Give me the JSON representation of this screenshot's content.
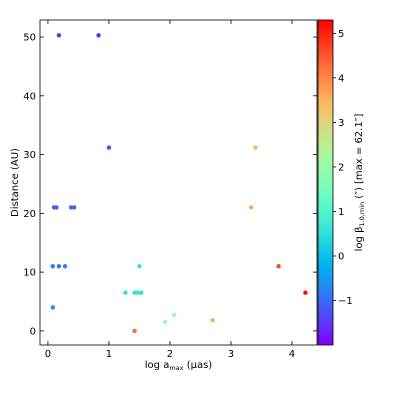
{
  "chart_data": {
    "type": "scatter",
    "x_label": {
      "main": "log a",
      "sub": "max",
      "rest": " (μas)"
    },
    "y_label": "Distance (AU)",
    "colorbar_label": {
      "main": "log β",
      "sub": "1.0,min",
      "rest": " (″) [max = 62.1″]"
    },
    "colormap": "rainbow",
    "x": [
      0.18,
      0.83,
      1.0,
      0.1,
      0.14,
      0.38,
      0.43,
      0.08,
      0.18,
      0.28,
      0.08,
      1.27,
      1.42,
      1.47,
      1.53,
      1.5,
      1.42,
      1.92,
      2.07,
      2.7,
      3.4,
      3.33,
      3.78,
      4.22
    ],
    "y": [
      50.3,
      50.3,
      31.2,
      21,
      21,
      21,
      21,
      11,
      11,
      11,
      4,
      6.5,
      6.5,
      6.5,
      6.5,
      11,
      0,
      1.5,
      2.7,
      1.8,
      31.2,
      21,
      11,
      6.5
    ],
    "c": [
      -1.6,
      -1.6,
      -1.3,
      -1.1,
      -1.1,
      -1.1,
      -1.1,
      -0.9,
      -0.9,
      -0.9,
      -0.6,
      0.5,
      0.5,
      0.6,
      0.6,
      0.6,
      4.3,
      2.0,
      2.2,
      3.5,
      3.5,
      3.6,
      4.7,
      5.2
    ],
    "xlim": [
      -0.13,
      4.41
    ],
    "xticks": [
      0,
      1,
      2,
      3,
      4
    ],
    "ylim": [
      -2.4,
      52.9
    ],
    "yticks": [
      0,
      10,
      20,
      30,
      40,
      50
    ],
    "clim": [
      -2.0,
      5.3
    ],
    "cticks": [
      {
        "value": -1,
        "label": "−1"
      },
      0,
      1,
      2,
      3,
      4,
      5
    ]
  }
}
